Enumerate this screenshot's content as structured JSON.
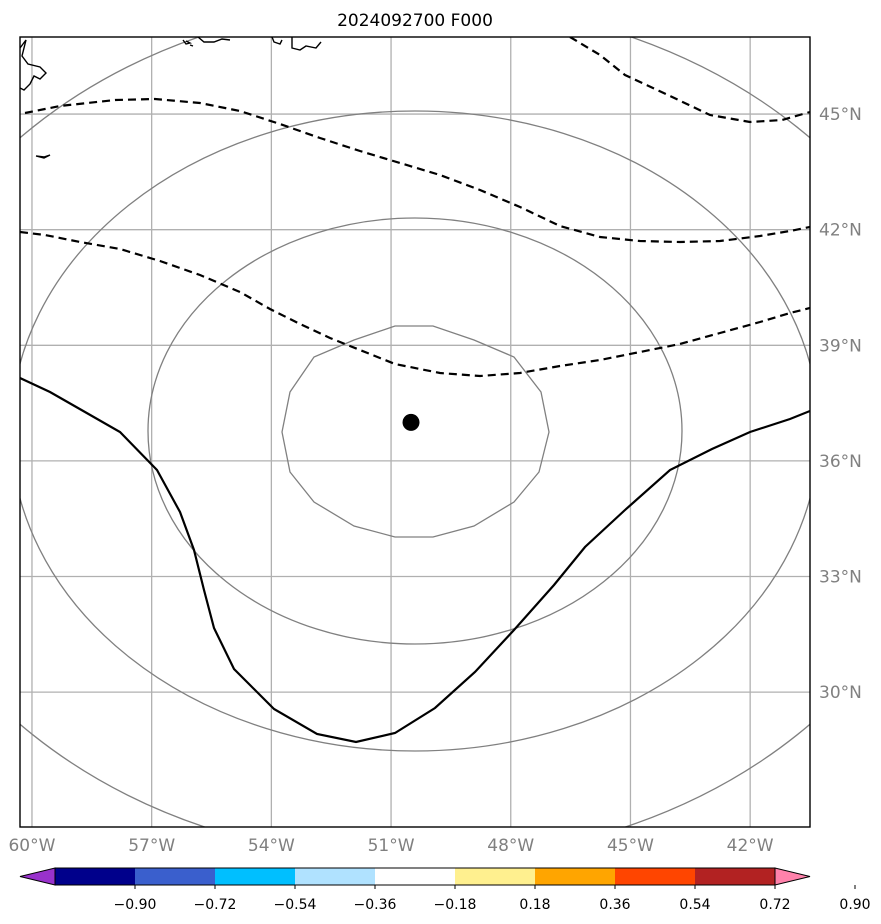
{
  "title": "2024092700 F000",
  "map": {
    "lon_range": [
      -60.3,
      -40.5
    ],
    "lat_range": [
      26.5,
      47.0
    ],
    "lon_ticks": [
      {
        "value": -60,
        "label": "60°W"
      },
      {
        "value": -57,
        "label": "57°W"
      },
      {
        "value": -54,
        "label": "54°W"
      },
      {
        "value": -51,
        "label": "51°W"
      },
      {
        "value": -48,
        "label": "48°W"
      },
      {
        "value": -45,
        "label": "45°W"
      },
      {
        "value": -42,
        "label": "42°W"
      }
    ],
    "lat_ticks": [
      {
        "value": 45,
        "label": "45°N"
      },
      {
        "value": 42,
        "label": "42°N"
      },
      {
        "value": 39,
        "label": "39°N"
      },
      {
        "value": 36,
        "label": "36°N"
      },
      {
        "value": 33,
        "label": "33°N"
      },
      {
        "value": 30,
        "label": "30°N"
      }
    ],
    "grid": true,
    "center_marker": {
      "lon": -50.5,
      "lat": 37.0
    },
    "colors": {
      "grid": "#b0b0b0",
      "range_rings": "#808080",
      "contours": "#000000",
      "coast": "#000000"
    }
  },
  "colorbar": {
    "extend": "both",
    "ticks": [
      "−0.90",
      "−0.72",
      "−0.54",
      "−0.36",
      "−0.18",
      "0.18",
      "0.36",
      "0.54",
      "0.72",
      "0.90"
    ],
    "colors": [
      "#9932cc",
      "#00008b",
      "#3a5fcd",
      "#00bfff",
      "#b0e2ff",
      "#ffffff",
      "#fff08f",
      "#ffa500",
      "#ff4500",
      "#b22222",
      "#ff82ab"
    ]
  }
}
